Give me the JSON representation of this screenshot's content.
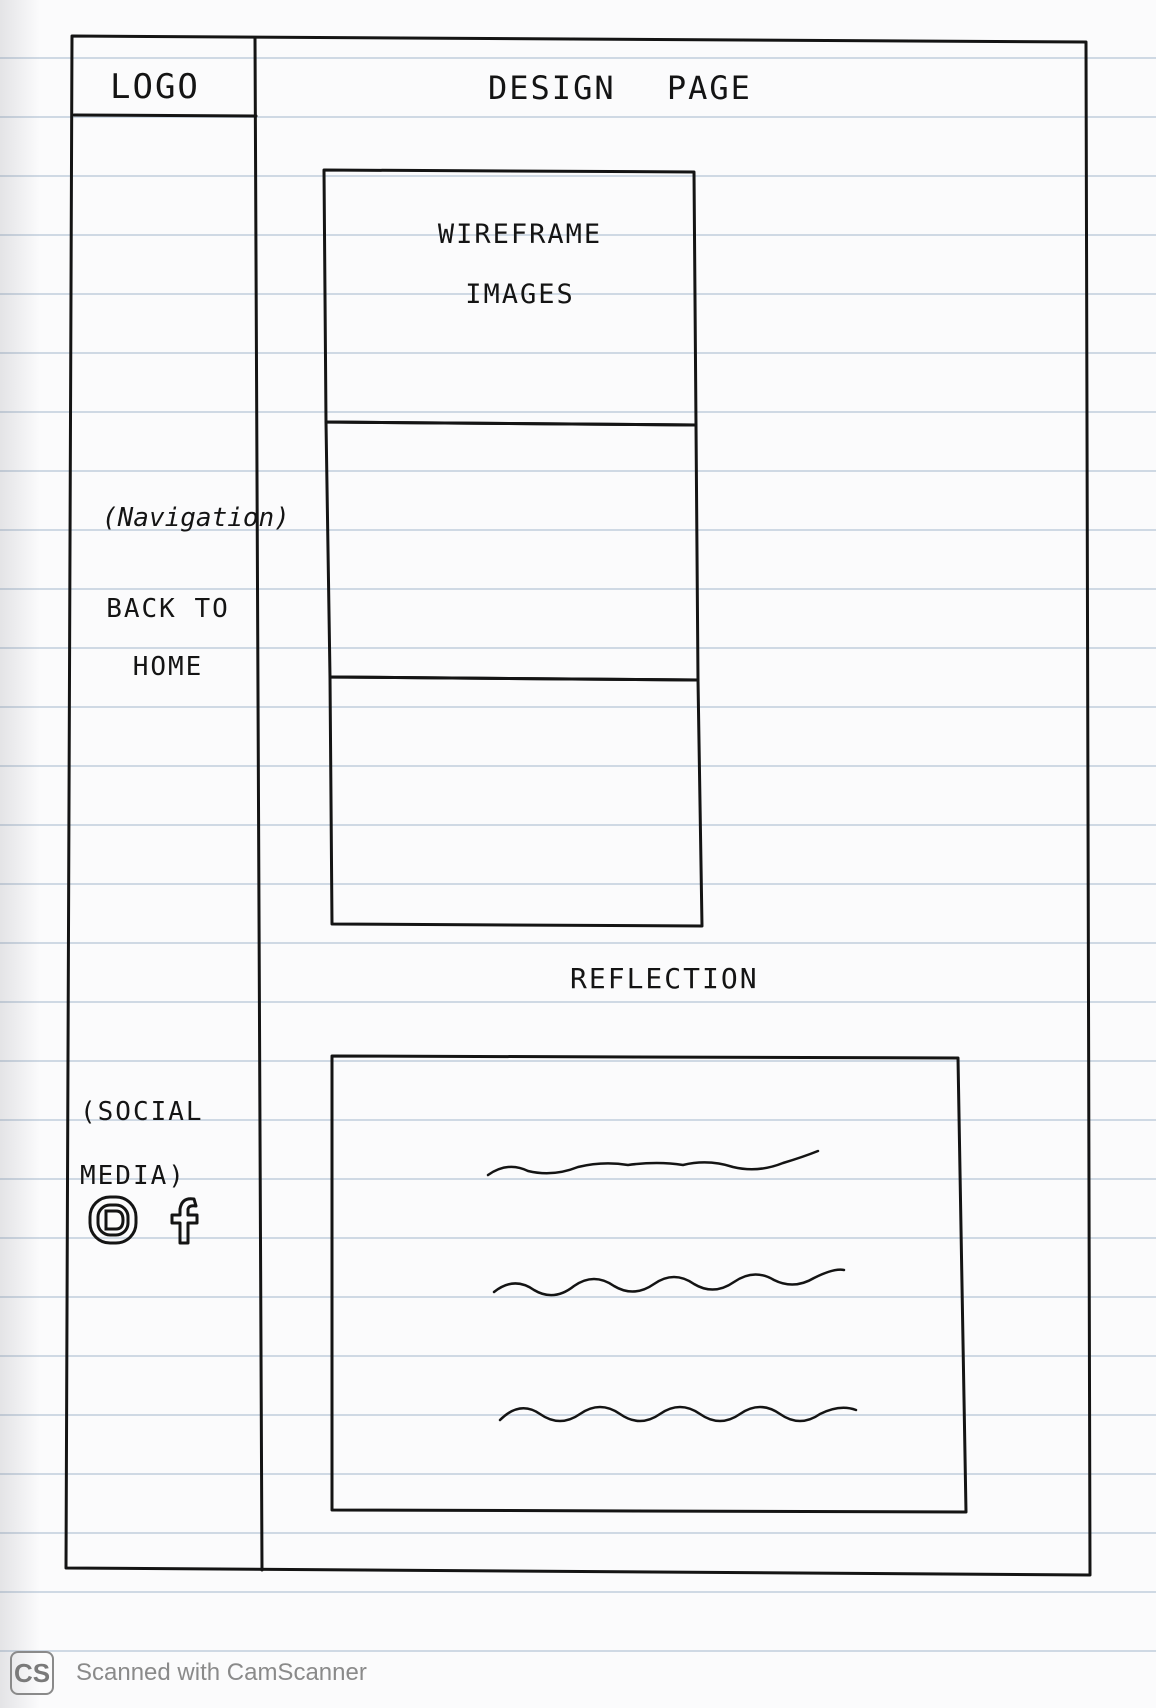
{
  "sidebar": {
    "logo": "LOGO",
    "navigation_label": "(Navigation)",
    "back_link": "BACK TO\nHOME",
    "social_label": "(SOCIAL\nMEDIA)",
    "social_icons": [
      "instagram-icon",
      "facebook-icon"
    ]
  },
  "header": {
    "title": "DESIGN PAGE"
  },
  "main": {
    "wireframe_label": "WIREFRAME\nIMAGES",
    "reflection_heading": "REFLECTION",
    "reflection_placeholder_lines": 3
  },
  "watermark": {
    "logo_text": "CS",
    "text": "Scanned with CamScanner"
  },
  "colors": {
    "ink": "#141414",
    "rule_line": "#cfd9e4",
    "watermark": "#8a8a8a"
  }
}
